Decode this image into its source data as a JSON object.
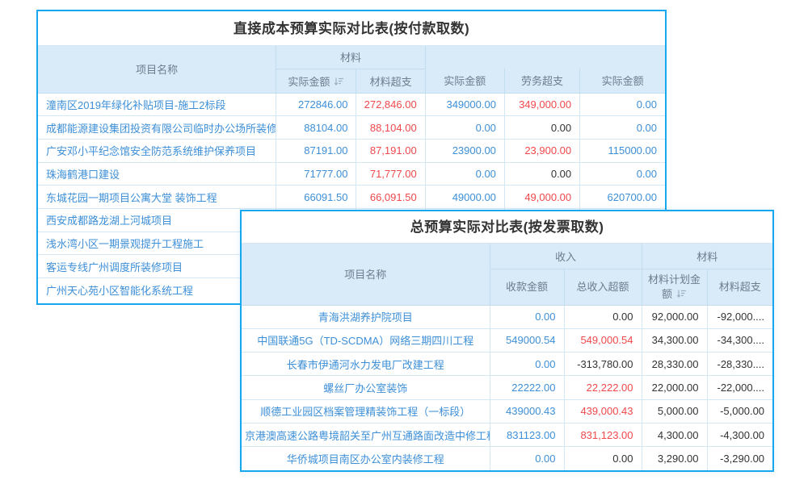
{
  "colors": {
    "frame_border": "#16a8ef",
    "header_bg": "#d9eaf8",
    "header_text": "#6b7d8f",
    "grid_line": "#d4e7f5",
    "link_blue": "#3d8fd8",
    "negative_red": "#f0484b",
    "plain_text": "#333333"
  },
  "table1": {
    "title": "直接成本预算实际对比表(按付款取数)",
    "name_header": "项目名称",
    "group_material": "材料",
    "group_empty": "",
    "columns": [
      "实际金额",
      "材料超支",
      "实际金额",
      "劳务超支",
      "实际金额"
    ],
    "sort_icon_name": "sort-descending-icon",
    "rows": [
      {
        "name": "潼南区2019年绿化补贴项目-施工2标段",
        "values": [
          {
            "t": "272846.00",
            "c": "blue"
          },
          {
            "t": "272,846.00",
            "c": "red"
          },
          {
            "t": "349000.00",
            "c": "blue"
          },
          {
            "t": "349,000.00",
            "c": "red"
          },
          {
            "t": "0.00",
            "c": "blue"
          }
        ]
      },
      {
        "name": "成都能源建设集团投资有限公司临时办公场所装修改造",
        "values": [
          {
            "t": "88104.00",
            "c": "blue"
          },
          {
            "t": "88,104.00",
            "c": "red"
          },
          {
            "t": "0.00",
            "c": "blue"
          },
          {
            "t": "0.00",
            "c": "black"
          },
          {
            "t": "0.00",
            "c": "blue"
          }
        ]
      },
      {
        "name": "广安邓小平纪念馆安全防范系统维护保养项目",
        "values": [
          {
            "t": "87191.00",
            "c": "blue"
          },
          {
            "t": "87,191.00",
            "c": "red"
          },
          {
            "t": "23900.00",
            "c": "blue"
          },
          {
            "t": "23,900.00",
            "c": "red"
          },
          {
            "t": "115000.00",
            "c": "blue"
          }
        ]
      },
      {
        "name": "珠海鹤港口建设",
        "values": [
          {
            "t": "71777.00",
            "c": "blue"
          },
          {
            "t": "71,777.00",
            "c": "red"
          },
          {
            "t": "0.00",
            "c": "blue"
          },
          {
            "t": "0.00",
            "c": "black"
          },
          {
            "t": "0.00",
            "c": "blue"
          }
        ]
      },
      {
        "name": "东城花园一期项目公寓大堂 装饰工程",
        "values": [
          {
            "t": "66091.50",
            "c": "blue"
          },
          {
            "t": "66,091.50",
            "c": "red"
          },
          {
            "t": "49000.00",
            "c": "blue"
          },
          {
            "t": "49,000.00",
            "c": "red"
          },
          {
            "t": "620700.00",
            "c": "blue"
          }
        ]
      },
      {
        "name": "西安成都路龙湖上河城项目",
        "values": [
          null,
          null,
          null,
          null,
          null
        ]
      },
      {
        "name": "浅水湾小区一期景观提升工程施工",
        "values": [
          null,
          null,
          null,
          null,
          null
        ]
      },
      {
        "name": "客运专线广州调度所装修项目",
        "values": [
          null,
          null,
          null,
          null,
          null
        ]
      },
      {
        "name": "广州天心苑小区智能化系统工程",
        "values": [
          null,
          null,
          null,
          null,
          null
        ]
      }
    ]
  },
  "table2": {
    "title": "总预算实际对比表(按发票取数)",
    "name_header": "项目名称",
    "group_income": "收入",
    "group_material": "材料",
    "columns": [
      "收款金额",
      "总收入超额",
      "材料计划金额",
      "材料超支"
    ],
    "sort_icon_name": "sort-descending-icon",
    "rows": [
      {
        "name": "青海洪湖养护院项目",
        "values": [
          {
            "t": "0.00",
            "c": "blue"
          },
          {
            "t": "0.00",
            "c": "black"
          },
          {
            "t": "92,000.00",
            "c": "black"
          },
          {
            "t": "-92,000....",
            "c": "black"
          }
        ]
      },
      {
        "name": "中国联通5G（TD-SCDMA）网络三期四川工程",
        "values": [
          {
            "t": "549000.54",
            "c": "blue"
          },
          {
            "t": "549,000.54",
            "c": "red"
          },
          {
            "t": "34,300.00",
            "c": "black"
          },
          {
            "t": "-34,300....",
            "c": "black"
          }
        ]
      },
      {
        "name": "长春市伊通河水力发电厂改建工程",
        "values": [
          {
            "t": "0.00",
            "c": "blue"
          },
          {
            "t": "-313,780.00",
            "c": "black"
          },
          {
            "t": "28,330.00",
            "c": "black"
          },
          {
            "t": "-28,330....",
            "c": "black"
          }
        ]
      },
      {
        "name": "螺丝厂办公室装饰",
        "values": [
          {
            "t": "22222.00",
            "c": "blue"
          },
          {
            "t": "22,222.00",
            "c": "red"
          },
          {
            "t": "22,000.00",
            "c": "black"
          },
          {
            "t": "-22,000....",
            "c": "black"
          }
        ]
      },
      {
        "name": "顺德工业园区档案管理精装饰工程（一标段）",
        "values": [
          {
            "t": "439000.43",
            "c": "blue"
          },
          {
            "t": "439,000.43",
            "c": "red"
          },
          {
            "t": "5,000.00",
            "c": "black"
          },
          {
            "t": "-5,000.00",
            "c": "black"
          }
        ]
      },
      {
        "name": "京港澳高速公路粤境韶关至广州互通路面改造中修工程",
        "values": [
          {
            "t": "831123.00",
            "c": "blue"
          },
          {
            "t": "831,123.00",
            "c": "red"
          },
          {
            "t": "4,300.00",
            "c": "black"
          },
          {
            "t": "-4,300.00",
            "c": "black"
          }
        ]
      },
      {
        "name": "华侨城项目南区办公室内装修工程",
        "values": [
          {
            "t": "0.00",
            "c": "blue"
          },
          {
            "t": "0.00",
            "c": "black"
          },
          {
            "t": "3,290.00",
            "c": "black"
          },
          {
            "t": "-3,290.00",
            "c": "black"
          }
        ]
      }
    ]
  }
}
